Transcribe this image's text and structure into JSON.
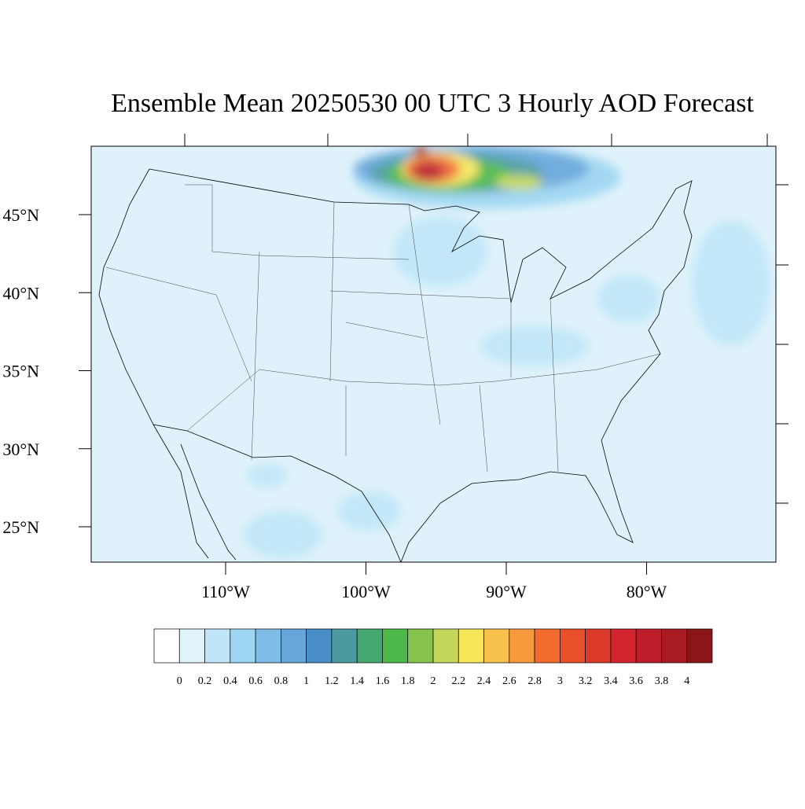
{
  "map": {
    "title": "Ensemble Mean 20250530 00 UTC 3 Hourly AOD Forecast",
    "lat_ticks": [
      {
        "value": 45,
        "label": "45°N"
      },
      {
        "value": 40,
        "label": "40°N"
      },
      {
        "value": 35,
        "label": "35°N"
      },
      {
        "value": 30,
        "label": "30°N"
      },
      {
        "value": 25,
        "label": "25°N"
      }
    ],
    "lon_ticks": [
      {
        "value": -110,
        "label": "110°W"
      },
      {
        "value": -100,
        "label": "100°W"
      },
      {
        "value": -90,
        "label": "90°W"
      },
      {
        "value": -80,
        "label": "80°W"
      }
    ],
    "colorbar": {
      "levels": [
        0,
        0.2,
        0.4,
        0.6,
        0.8,
        1,
        1.2,
        1.4,
        1.6,
        1.8,
        2,
        2.2,
        2.4,
        2.6,
        2.8,
        3,
        3.2,
        3.4,
        3.6,
        3.8,
        4
      ],
      "colors": [
        "#ffffff",
        "#e0f3fb",
        "#bfe6f8",
        "#9dd6f2",
        "#7fbde6",
        "#66a6da",
        "#4a8ec8",
        "#4a9aa0",
        "#45a870",
        "#4db84a",
        "#86c44e",
        "#c3d65a",
        "#f7e65a",
        "#f8c14d",
        "#f79a3e",
        "#f36b2d",
        "#e8502a",
        "#dc3a28",
        "#d22530",
        "#bd1e2a",
        "#a81b22",
        "#8c1519"
      ]
    }
  }
}
